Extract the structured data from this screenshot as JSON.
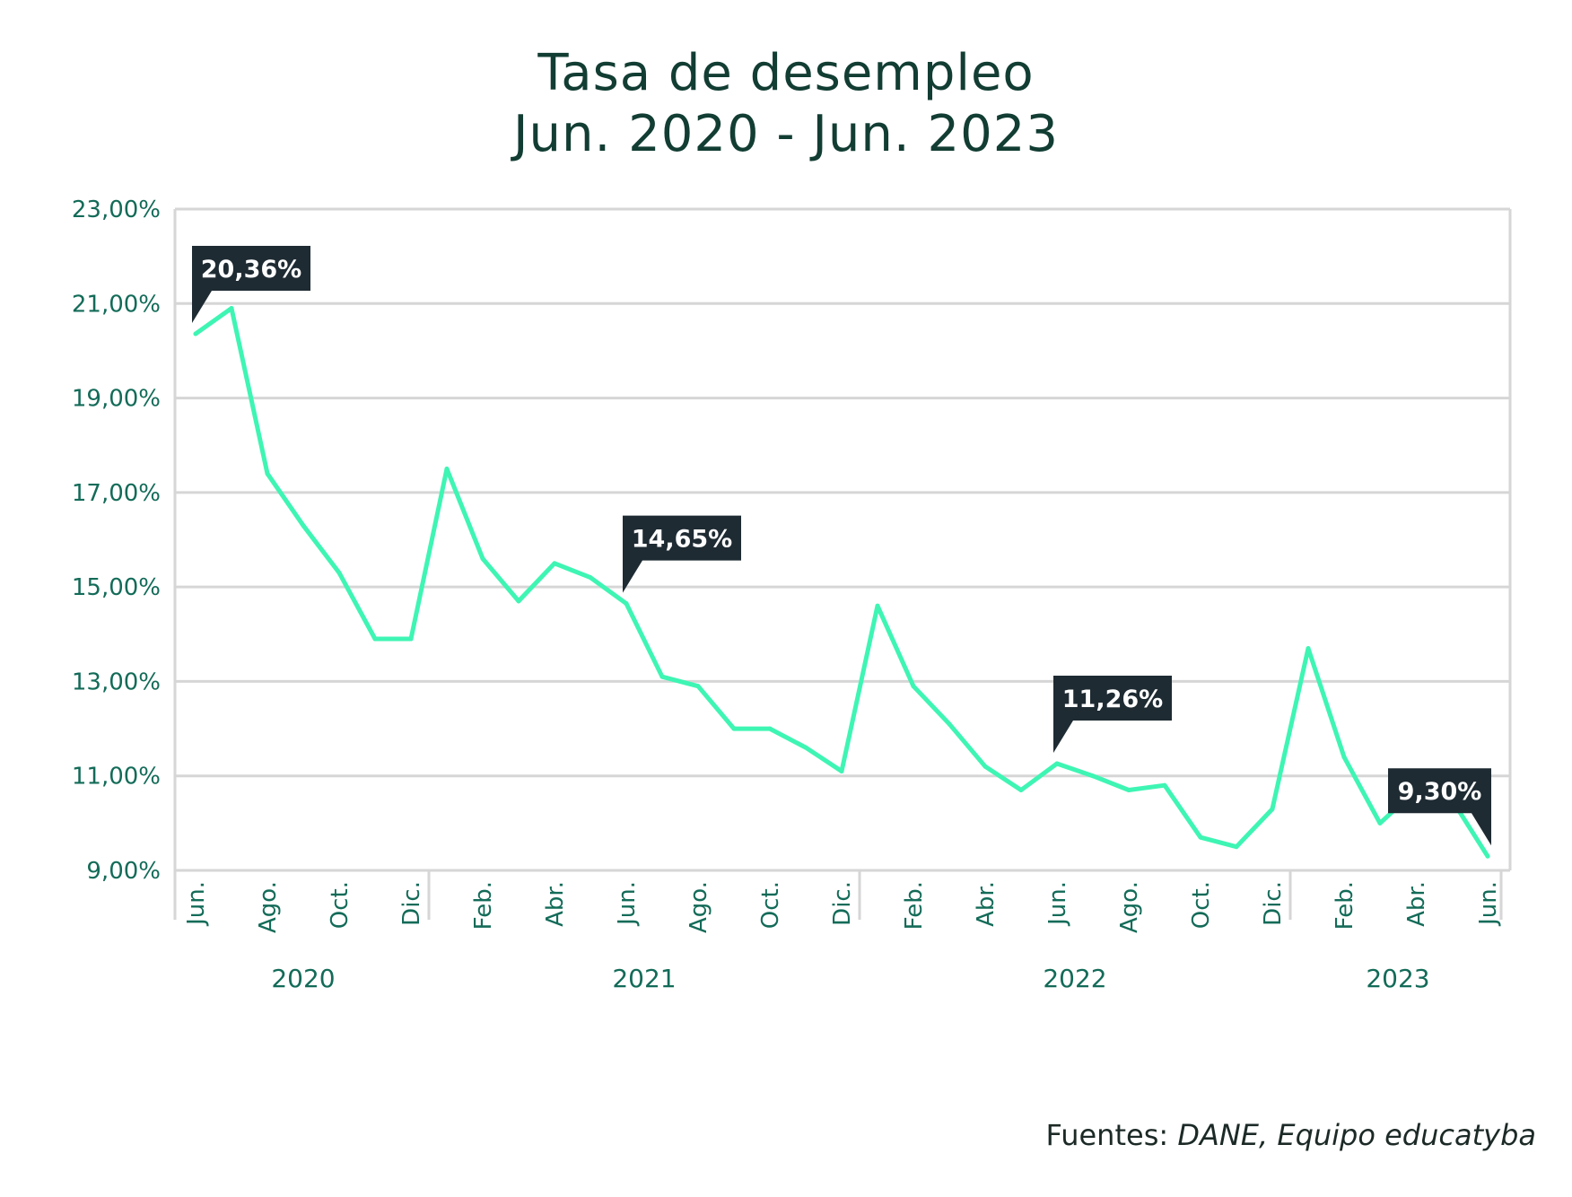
{
  "title_line1": "Tasa de desempleo",
  "title_line2": "Jun. 2020 - Jun. 2023",
  "source_label": "Fuentes: ",
  "source_names": "DANE, Equipo educatyba",
  "colors": {
    "line": "#3ef5b4",
    "title": "#123d33",
    "axis_text": "#136b58",
    "grid": "#d6d6d6",
    "callout_bg": "#1f2b33"
  },
  "chart_data": {
    "type": "line",
    "title": "Tasa de desempleo Jun. 2020 - Jun. 2023",
    "xlabel": "",
    "ylabel": "",
    "ylim": [
      9,
      23
    ],
    "yticks": [
      "23,00%",
      "21,00%",
      "19,00%",
      "17,00%",
      "15,00%",
      "13,00%",
      "11,00%",
      "9,00%"
    ],
    "ytick_values": [
      23,
      21,
      19,
      17,
      15,
      13,
      11,
      9
    ],
    "grid": true,
    "x": [
      "Jun. 2020",
      "Jul. 2020",
      "Ago. 2020",
      "Sep. 2020",
      "Oct. 2020",
      "Nov. 2020",
      "Dic. 2020",
      "Ene. 2021",
      "Feb. 2021",
      "Mar. 2021",
      "Abr. 2021",
      "May. 2021",
      "Jun. 2021",
      "Jul. 2021",
      "Ago. 2021",
      "Sep. 2021",
      "Oct. 2021",
      "Nov. 2021",
      "Dic. 2021",
      "Ene. 2022",
      "Feb. 2022",
      "Mar. 2022",
      "Abr. 2022",
      "May. 2022",
      "Jun. 2022",
      "Jul. 2022",
      "Ago. 2022",
      "Sep. 2022",
      "Oct. 2022",
      "Nov. 2022",
      "Dic. 2022",
      "Ene. 2023",
      "Feb. 2023",
      "Mar. 2023",
      "Abr. 2023",
      "May. 2023",
      "Jun. 2023"
    ],
    "values": [
      20.36,
      20.9,
      17.4,
      16.3,
      15.3,
      13.9,
      13.9,
      17.5,
      15.6,
      14.7,
      15.5,
      15.2,
      14.65,
      13.1,
      12.9,
      12.0,
      12.0,
      11.6,
      11.1,
      14.6,
      12.9,
      12.1,
      11.2,
      10.7,
      11.26,
      11.0,
      10.7,
      10.8,
      9.7,
      9.5,
      10.3,
      13.7,
      11.4,
      10.0,
      10.7,
      10.5,
      9.3
    ],
    "xtick_labels": [
      {
        "index": 0,
        "label": "Jun."
      },
      {
        "index": 2,
        "label": "Ago."
      },
      {
        "index": 4,
        "label": "Oct."
      },
      {
        "index": 6,
        "label": "Dic."
      },
      {
        "index": 8,
        "label": "Feb."
      },
      {
        "index": 10,
        "label": "Abr."
      },
      {
        "index": 12,
        "label": "Jun."
      },
      {
        "index": 14,
        "label": "Ago."
      },
      {
        "index": 16,
        "label": "Oct."
      },
      {
        "index": 18,
        "label": "Dic."
      },
      {
        "index": 20,
        "label": "Feb."
      },
      {
        "index": 22,
        "label": "Abr."
      },
      {
        "index": 24,
        "label": "Jun."
      },
      {
        "index": 26,
        "label": "Ago."
      },
      {
        "index": 28,
        "label": "Oct."
      },
      {
        "index": 30,
        "label": "Dic."
      },
      {
        "index": 32,
        "label": "Feb."
      },
      {
        "index": 34,
        "label": "Abr."
      },
      {
        "index": 36,
        "label": "Jun."
      }
    ],
    "years": [
      {
        "label": "2020",
        "from": 0,
        "to": 6
      },
      {
        "label": "2021",
        "from": 7,
        "to": 18
      },
      {
        "label": "2022",
        "from": 19,
        "to": 30
      },
      {
        "label": "2023",
        "from": 31,
        "to": 36
      }
    ],
    "annotations": [
      {
        "index": 0,
        "text": "20,36%",
        "pointer": "left"
      },
      {
        "index": 12,
        "text": "14,65%",
        "pointer": "left"
      },
      {
        "index": 24,
        "text": "11,26%",
        "pointer": "left"
      },
      {
        "index": 36,
        "text": "9,30%",
        "pointer": "right"
      }
    ]
  }
}
